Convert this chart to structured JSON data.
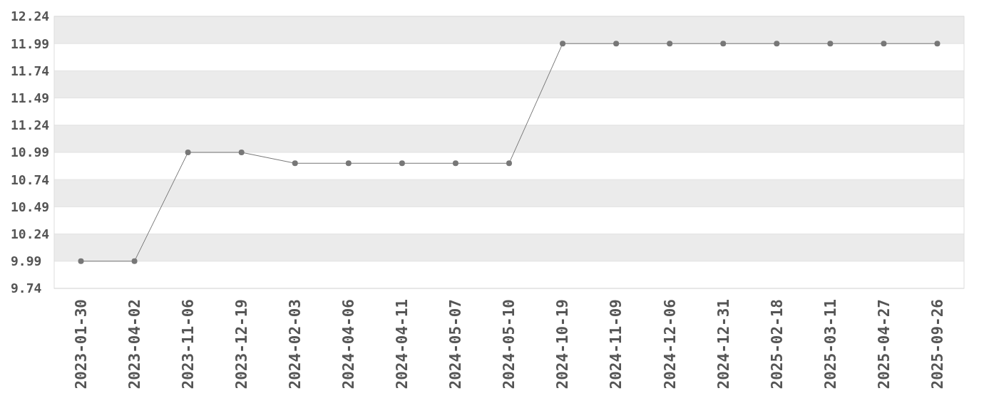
{
  "chart_data": {
    "type": "line",
    "categories": [
      "2023-01-30",
      "2023-04-02",
      "2023-11-06",
      "2023-12-19",
      "2024-02-03",
      "2024-04-06",
      "2024-04-11",
      "2024-05-07",
      "2024-05-10",
      "2024-10-19",
      "2024-11-09",
      "2024-12-06",
      "2024-12-31",
      "2025-02-18",
      "2025-03-11",
      "2025-04-27",
      "2025-09-26"
    ],
    "series": [
      {
        "color": "#777777",
        "values": [
          9.99,
          9.99,
          10.99,
          10.99,
          10.89,
          10.89,
          10.89,
          10.89,
          10.89,
          11.99,
          11.99,
          11.99,
          11.99,
          11.99,
          11.99,
          11.99,
          11.99
        ]
      }
    ],
    "ylim": [
      9.74,
      12.24
    ],
    "yticks": [
      9.74,
      9.99,
      10.24,
      10.49,
      10.74,
      10.99,
      11.24,
      11.49,
      11.74,
      11.99,
      12.24
    ],
    "grid": "y",
    "marker": "circle",
    "line_style": "solid"
  }
}
